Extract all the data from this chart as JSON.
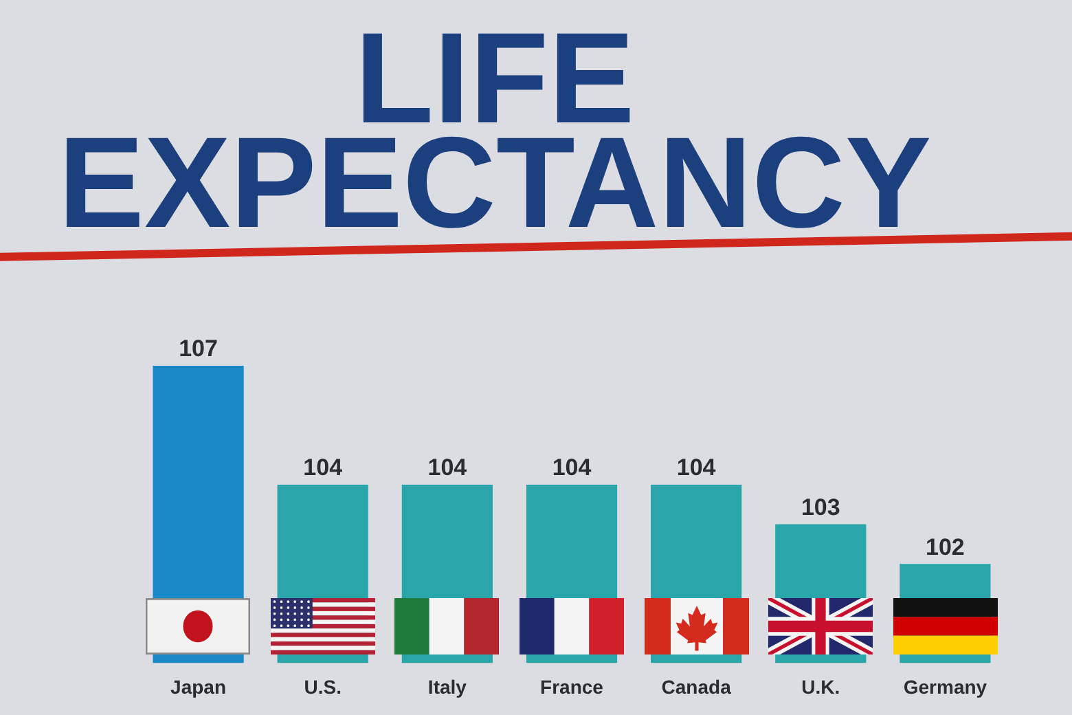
{
  "chart_data": {
    "type": "bar",
    "title": "LIFE EXPECTANCY",
    "categories": [
      "Japan",
      "U.S.",
      "Italy",
      "France",
      "Canada",
      "U.K.",
      "Germany"
    ],
    "values": [
      107,
      104,
      104,
      104,
      104,
      103,
      102
    ],
    "colors": [
      "#1a88c6",
      "#2aa5aa",
      "#2aa5aa",
      "#2aa5aa",
      "#2aa5aa",
      "#2aa5aa",
      "#2aa5aa"
    ],
    "ylim": [
      99.5,
      107
    ],
    "data_labels": true,
    "tick_labels": "x"
  }
}
